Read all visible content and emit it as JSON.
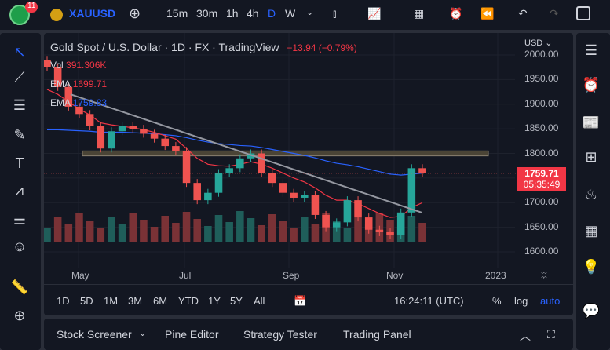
{
  "badge": "11",
  "symbol": "XAUUSD",
  "intervals": [
    "15m",
    "30m",
    "1h",
    "4h",
    "D",
    "W"
  ],
  "legend": {
    "title": "Gold Spot / U.S. Dollar · 1D · FX · TradingView",
    "change": "−13.94 (−0.79%)",
    "vol_label": "Vol",
    "vol_value": "391.306K",
    "ema1_label": "EMA",
    "ema1_value": "1699.71",
    "ema2_label": "EMA",
    "ema2_value": "1759.83"
  },
  "currency": "USD",
  "price_ticks": [
    "2000.00",
    "1950.00",
    "1900.00",
    "1850.00",
    "1800.00",
    "1700.00",
    "1650.00",
    "1600.00"
  ],
  "last_price": "1759.71",
  "countdown": "05:35:49",
  "time_ticks": [
    "May",
    "Jul",
    "Sep",
    "Nov",
    "2023"
  ],
  "ranges": [
    "1D",
    "5D",
    "1M",
    "3M",
    "6M",
    "YTD",
    "1Y",
    "5Y",
    "All"
  ],
  "clock": "16:24:11 (UTC)",
  "scale": {
    "pct": "%",
    "log": "log",
    "auto": "auto"
  },
  "bottom_tabs": [
    "Stock Screener",
    "Pine Editor",
    "Strategy Tester",
    "Trading Panel"
  ],
  "colors": {
    "up": "#26a69a",
    "down": "#ef5350",
    "ema1": "#f23645",
    "ema2": "#2962ff",
    "accent": "#2962ff"
  },
  "chart_data": {
    "type": "candlestick",
    "ylim": [
      1580,
      2010
    ],
    "closes": [
      1975,
      1935,
      1895,
      1880,
      1855,
      1810,
      1845,
      1855,
      1850,
      1840,
      1830,
      1815,
      1805,
      1740,
      1705,
      1720,
      1760,
      1770,
      1790,
      1800,
      1760,
      1740,
      1720,
      1710,
      1715,
      1675,
      1650,
      1660,
      1705,
      1670,
      1645,
      1640,
      1635,
      1680,
      1770,
      1760
    ],
    "ema1": [
      1930,
      1920,
      1905,
      1890,
      1878,
      1862,
      1858,
      1855,
      1852,
      1848,
      1843,
      1836,
      1829,
      1810,
      1790,
      1778,
      1775,
      1774,
      1778,
      1783,
      1778,
      1770,
      1760,
      1750,
      1742,
      1730,
      1715,
      1705,
      1705,
      1698,
      1688,
      1678,
      1670,
      1672,
      1690,
      1700
    ],
    "ema2": [
      1848,
      1848,
      1847,
      1846,
      1845,
      1843,
      1843,
      1843,
      1842,
      1841,
      1840,
      1838,
      1836,
      1832,
      1827,
      1823,
      1820,
      1818,
      1816,
      1815,
      1812,
      1808,
      1804,
      1800,
      1796,
      1791,
      1785,
      1780,
      1777,
      1773,
      1768,
      1763,
      1758,
      1756,
      1758,
      1760
    ],
    "support_zone": [
      1795,
      1805
    ],
    "trendline": [
      1920,
      1680
    ]
  }
}
